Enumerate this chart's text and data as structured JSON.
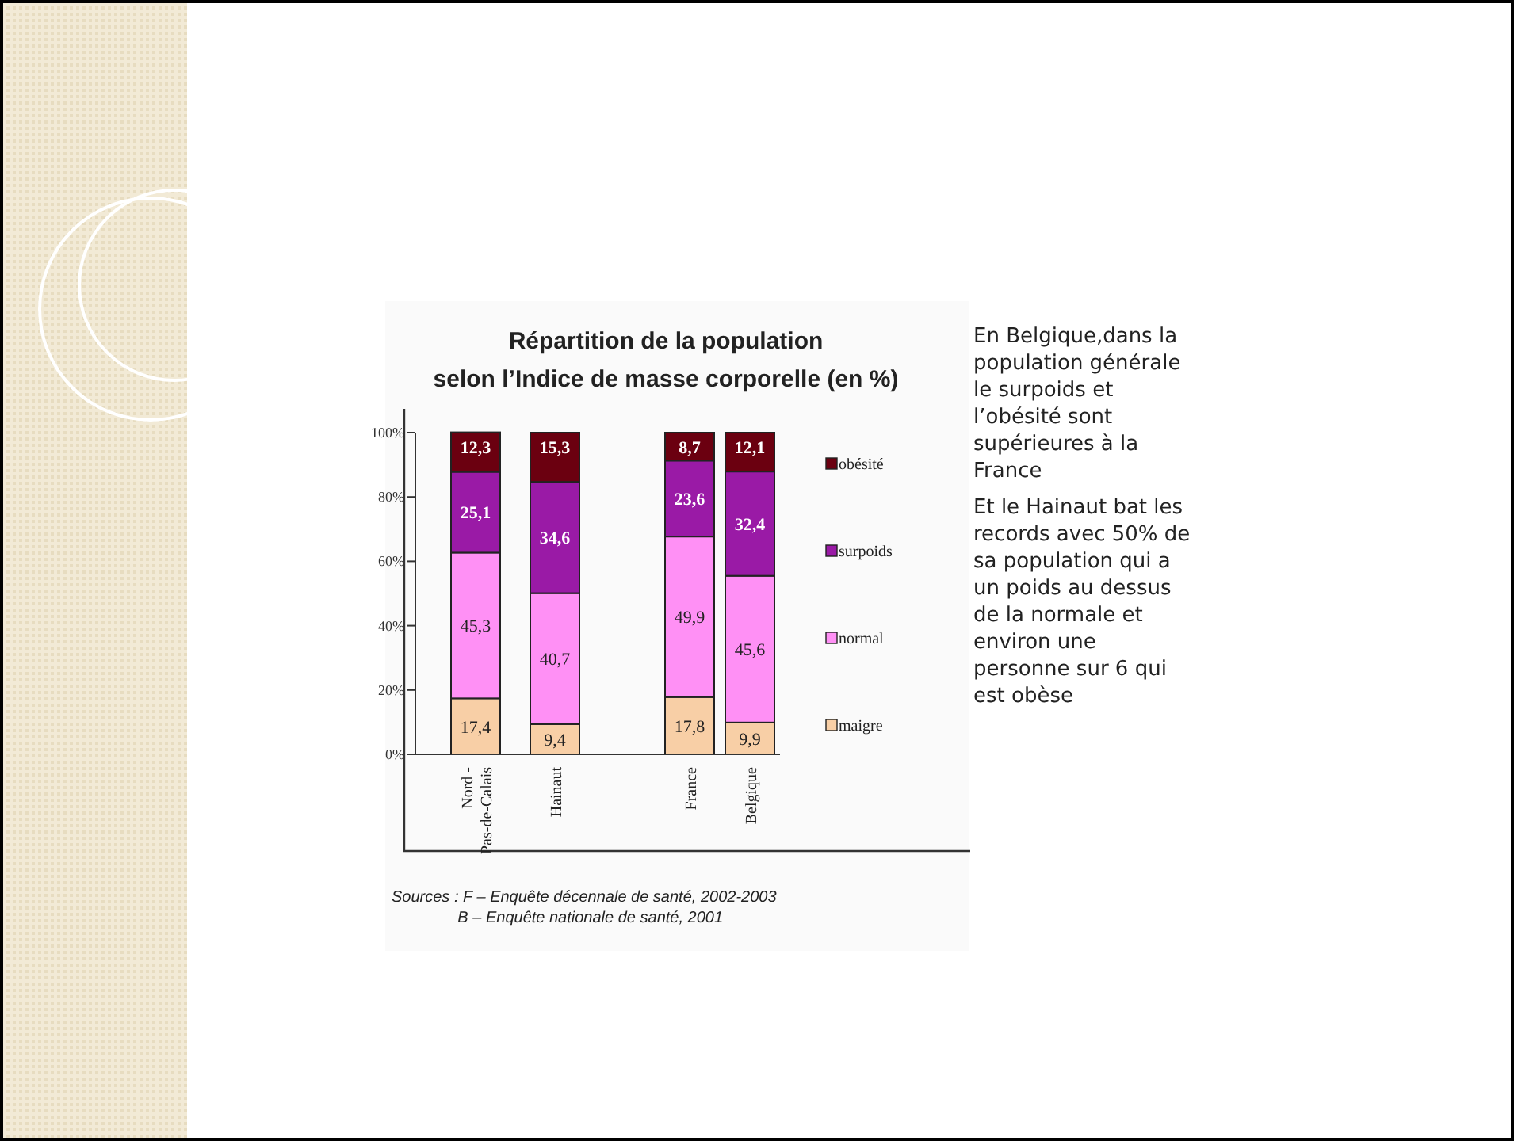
{
  "chart_data": {
    "type": "bar",
    "title": "Répartition de la population\nselon l’Indice de masse corporelle (en %)",
    "categories": [
      "Nord -\nPas-de-Calais",
      "Hainaut",
      "France",
      "Belgique"
    ],
    "stacked": true,
    "series": [
      {
        "name": "maigre",
        "color": "#f8cfa6",
        "values": [
          17.4,
          9.4,
          17.8,
          9.9
        ],
        "value_labels": [
          "17,4",
          "9,4",
          "17,8",
          "9,9"
        ]
      },
      {
        "name": "normal",
        "color": "#ff90f5",
        "values": [
          45.3,
          40.7,
          49.9,
          45.6
        ],
        "value_labels": [
          "45,3",
          "40,7",
          "49,9",
          "45,6"
        ]
      },
      {
        "name": "surpoids",
        "color": "#9a1aa6",
        "values": [
          25.1,
          34.6,
          23.6,
          32.4
        ],
        "value_labels": [
          "25,1",
          "34,6",
          "23,6",
          "32,4"
        ]
      },
      {
        "name": "obésité",
        "color": "#6b0010",
        "values": [
          12.3,
          15.3,
          8.7,
          12.1
        ],
        "value_labels": [
          "12,3",
          "15,3",
          "8,7",
          "12,1"
        ]
      }
    ],
    "ylim": [
      0,
      100
    ],
    "yticks": [
      {
        "value": 0,
        "label": "0%"
      },
      {
        "value": 20,
        "label": "20%"
      },
      {
        "value": 40,
        "label": "40%"
      },
      {
        "value": 60,
        "label": "60%"
      },
      {
        "value": 80,
        "label": "80%"
      },
      {
        "value": 100,
        "label": "100%"
      }
    ],
    "legend": "right",
    "annotations": [
      "En Belgique,dans la\npopulation générale\nle surpoids et\nl’obésité sont\nsupérieures à la\nFrance",
      "Et le Hainaut bat les\nrecords avec 50% de\nsa population qui a\nun poids au dessus\nde la normale et\nenviron une\npersonne sur 6 qui\nest obèse",
      "Sources : F – Enquête décennale de santé, 2002-2003\n               B – Enquête nationale de santé, 2001"
    ]
  }
}
